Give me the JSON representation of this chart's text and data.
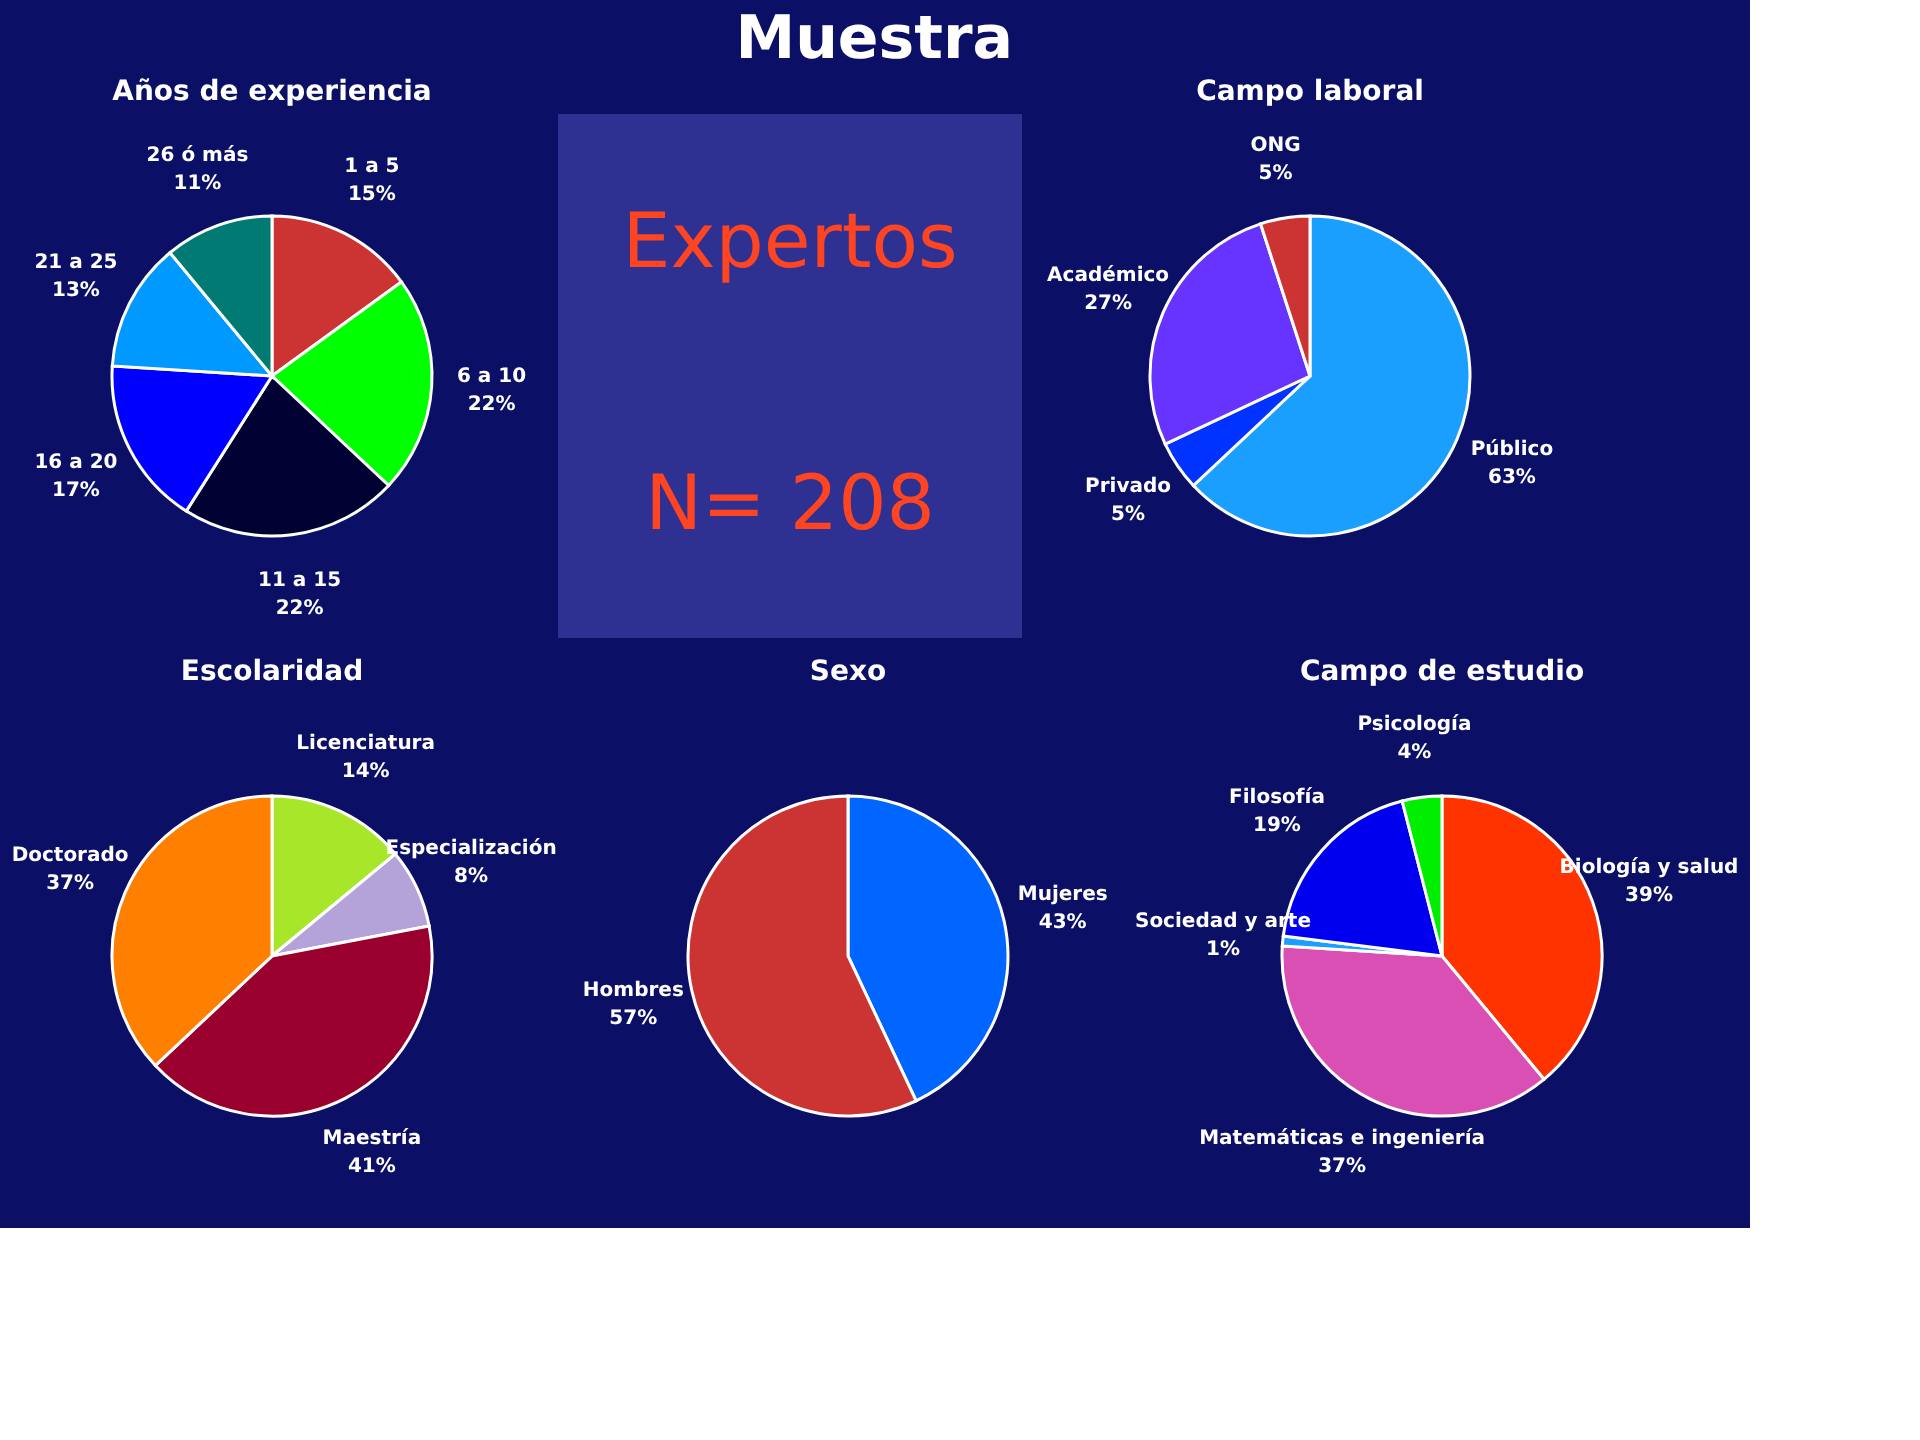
{
  "chart_data": [
    {
      "type": "other",
      "title": "Muestra",
      "annotations": [
        "Expertos",
        "N= 208"
      ]
    },
    {
      "type": "pie",
      "title": "Años de experiencia",
      "categories": [
        "1 a 5",
        "6 a 10",
        "11 a 15",
        "16 a 20",
        "21 a 25",
        "26 ó más"
      ],
      "values": [
        15,
        22,
        22,
        17,
        13,
        11
      ],
      "value_labels": [
        "15%",
        "22%",
        "22%",
        "17%",
        "13%",
        "11%"
      ],
      "colors": [
        "#cc3333",
        "#00ff00",
        "#000033",
        "#0000ff",
        "#0099ff",
        "#007a73"
      ]
    },
    {
      "type": "pie",
      "title": "Campo laboral",
      "categories": [
        "Público",
        "Privado",
        "Académico",
        "ONG"
      ],
      "values": [
        63,
        5,
        27,
        5
      ],
      "value_labels": [
        "63%",
        "5%",
        "27%",
        "5%"
      ],
      "colors": [
        "#1a9fff",
        "#0033ff",
        "#6633ff",
        "#cc3333"
      ]
    },
    {
      "type": "pie",
      "title": "Escolaridad",
      "categories": [
        "Licenciatura",
        "Especialización",
        "Maestría",
        "Doctorado"
      ],
      "values": [
        14,
        8,
        41,
        37
      ],
      "value_labels": [
        "14%",
        "8%",
        "41%",
        "37%"
      ],
      "colors": [
        "#a8e62a",
        "#b3a3d9",
        "#99002e",
        "#ff8000"
      ]
    },
    {
      "type": "pie",
      "title": "Sexo",
      "categories": [
        "Mujeres",
        "Hombres"
      ],
      "values": [
        43,
        57
      ],
      "value_labels": [
        "43%",
        "57%"
      ],
      "colors": [
        "#0066ff",
        "#cc3333"
      ]
    },
    {
      "type": "pie",
      "title": "Campo de estudio",
      "categories": [
        "Biología y salud",
        "Matemáticas e ingeniería",
        "Sociedad y arte",
        "Filosofía",
        "Psicología"
      ],
      "values": [
        39,
        37,
        1,
        19,
        4
      ],
      "value_labels": [
        "39%",
        "37%",
        "1%",
        "19%",
        "4%"
      ],
      "colors": [
        "#ff3300",
        "#d94fb3",
        "#1a9fff",
        "#0000ee",
        "#00ee00"
      ]
    }
  ]
}
